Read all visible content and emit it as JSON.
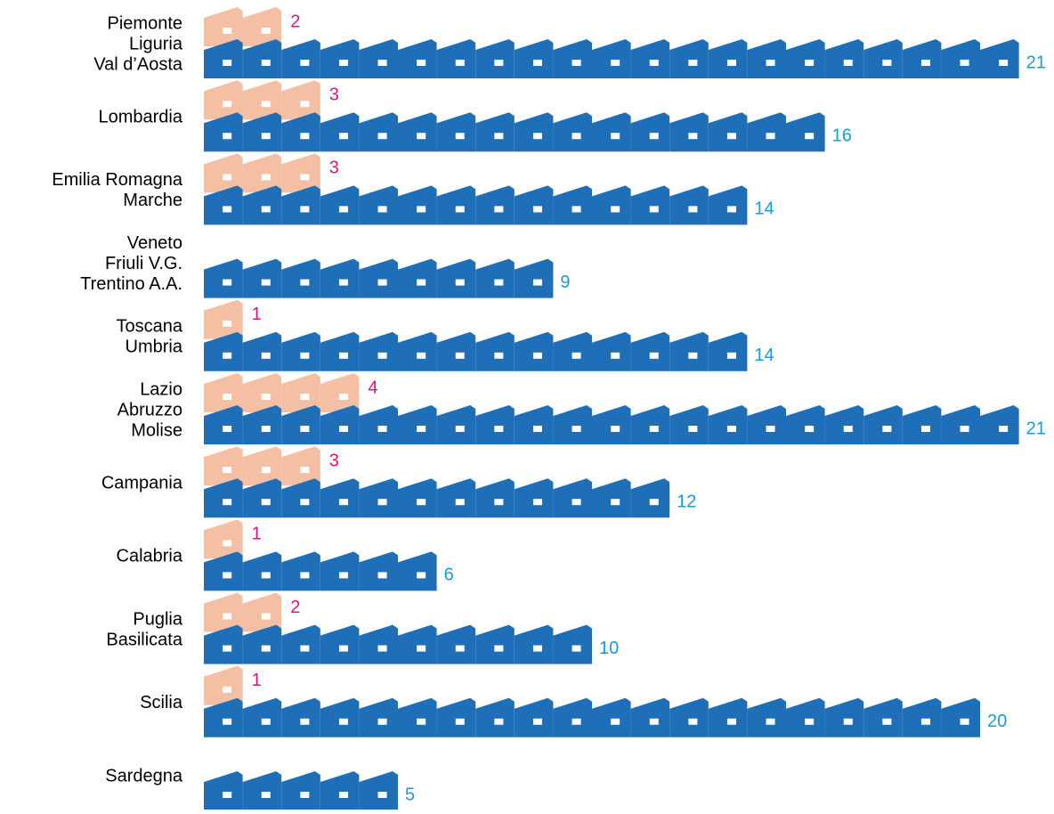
{
  "chart_data": {
    "type": "pictogram",
    "categories": [
      [
        "Piemonte",
        "Liguria",
        "Val d’Aosta"
      ],
      [
        "Lombardia"
      ],
      [
        "Emilia Romagna",
        "Marche"
      ],
      [
        "Veneto",
        "Friuli V.G.",
        "Trentino A.A."
      ],
      [
        "Toscana",
        "Umbria"
      ],
      [
        "Lazio",
        "Abruzzo",
        "Molise"
      ],
      [
        "Campania"
      ],
      [
        "Calabria"
      ],
      [
        "Puglia",
        "Basilicata"
      ],
      [
        "Scilia"
      ],
      [
        "Sardegna"
      ]
    ],
    "series": [
      {
        "color": "#f4bfa3",
        "label_color": "#e0127a",
        "values": [
          2,
          3,
          3,
          null,
          1,
          4,
          3,
          1,
          2,
          1,
          null
        ]
      },
      {
        "color": "#1f6fb8",
        "label_color": "#1a9ad6",
        "values": [
          21,
          16,
          14,
          9,
          14,
          21,
          12,
          6,
          10,
          20,
          5
        ]
      }
    ]
  }
}
